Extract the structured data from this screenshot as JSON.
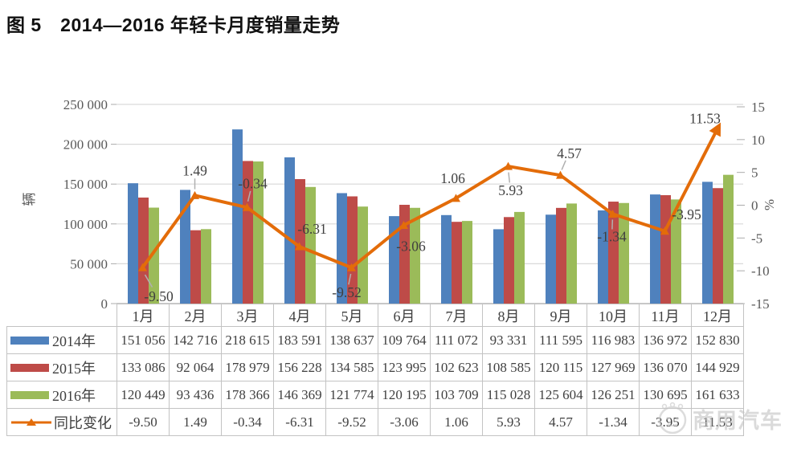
{
  "title": "图 5　2014—2016 年轻卡月度销量走势",
  "watermark": {
    "text": "商用汽车"
  },
  "chart_data": {
    "type": "bar+line",
    "title": "2014—2016 年轻卡月度销量走势",
    "categories": [
      "1月",
      "2月",
      "3月",
      "4月",
      "5月",
      "6月",
      "7月",
      "8月",
      "9月",
      "10月",
      "11月",
      "12月"
    ],
    "series": [
      {
        "name": "2014年",
        "type": "bar",
        "color": "#4f81bd",
        "values": [
          151056,
          142716,
          218615,
          183591,
          138637,
          109764,
          111072,
          93331,
          111595,
          116983,
          136972,
          152830
        ]
      },
      {
        "name": "2015年",
        "type": "bar",
        "color": "#be4b48",
        "values": [
          133086,
          92064,
          178979,
          156228,
          134585,
          123995,
          102623,
          108585,
          120115,
          127969,
          136070,
          144929
        ]
      },
      {
        "name": "2016年",
        "type": "bar",
        "color": "#9bbb59",
        "values": [
          120449,
          93436,
          178366,
          146369,
          121774,
          120195,
          103709,
          115028,
          125604,
          126251,
          130695,
          161633
        ]
      },
      {
        "name": "同比变化",
        "type": "line",
        "color": "#e36c09",
        "values": [
          -9.5,
          1.49,
          -0.34,
          -6.31,
          -9.52,
          -3.06,
          1.06,
          5.93,
          4.57,
          -1.34,
          -3.95,
          11.53
        ],
        "labels": [
          "-9.50",
          "1.49",
          "-0.34",
          "-6.31",
          "-9.52",
          "-3.06",
          "1.06",
          "5.93",
          "4.57",
          "-1.34",
          "-3.95",
          "11.53"
        ]
      }
    ],
    "left_axis": {
      "label": "辆",
      "min": 0,
      "max": 250000,
      "ticks": [
        "0",
        "50 000",
        "100 000",
        "150 000",
        "200 000",
        "250 000"
      ]
    },
    "right_axis": {
      "label": "%",
      "min": -15,
      "max": 15,
      "ticks": [
        "-15",
        "-10",
        "-5",
        "0",
        "5",
        "10",
        "15"
      ]
    },
    "grid": true,
    "legend_position": "table"
  },
  "table": {
    "rows": [
      {
        "label": "2014年",
        "key": "bar",
        "color": "#4f81bd",
        "cells": [
          "151 056",
          "142 716",
          "218 615",
          "183 591",
          "138 637",
          "109 764",
          "111 072",
          "93 331",
          "111 595",
          "116 983",
          "136 972",
          "152 830"
        ]
      },
      {
        "label": "2015年",
        "key": "bar",
        "color": "#be4b48",
        "cells": [
          "133 086",
          "92 064",
          "178 979",
          "156 228",
          "134 585",
          "123 995",
          "102 623",
          "108 585",
          "120 115",
          "127 969",
          "136 070",
          "144 929"
        ]
      },
      {
        "label": "2016年",
        "key": "bar",
        "color": "#9bbb59",
        "cells": [
          "120 449",
          "93 436",
          "178 366",
          "146 369",
          "121 774",
          "120 195",
          "103 709",
          "115 028",
          "125 604",
          "126 251",
          "130 695",
          "161 633"
        ]
      },
      {
        "label": "同比变化",
        "key": "line",
        "color": "#e36c09",
        "cells": [
          "-9.50",
          "1.49",
          "-0.34",
          "-6.31",
          "-9.52",
          "-3.06",
          "1.06",
          "5.93",
          "4.57",
          "-1.34",
          "-3.95",
          "11.53"
        ]
      }
    ]
  }
}
